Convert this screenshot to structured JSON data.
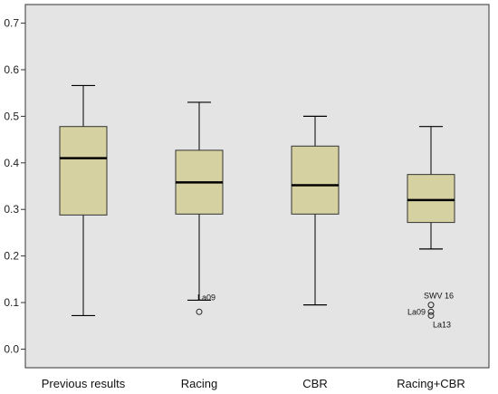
{
  "colors": {
    "plot_background": "#e4e4e4",
    "box_fill": "#d6d1a0",
    "median_line": "#000000",
    "axis": "#333333"
  },
  "chart_data": {
    "type": "boxplot",
    "title": "",
    "xlabel": "",
    "ylabel": "",
    "ylim": [
      -0.04,
      0.74
    ],
    "yticks": [
      0.0,
      0.1,
      0.2,
      0.3,
      0.4,
      0.5,
      0.6,
      0.7
    ],
    "ytick_labels": [
      "0.0",
      "0.1",
      "0.2",
      "0.3",
      "0.4",
      "0.5",
      "0.6",
      "0.7"
    ],
    "grid": false,
    "categories": [
      "Previous results",
      "Racing",
      "CBR",
      "Racing+CBR"
    ],
    "boxes": [
      {
        "category": "Previous results",
        "whisker_low": 0.072,
        "q1": 0.288,
        "median": 0.41,
        "q3": 0.478,
        "whisker_high": 0.566,
        "outliers": []
      },
      {
        "category": "Racing",
        "whisker_low": 0.105,
        "q1": 0.29,
        "median": 0.358,
        "q3": 0.427,
        "whisker_high": 0.53,
        "outliers": [
          {
            "value": 0.08,
            "label": "La09"
          }
        ]
      },
      {
        "category": "CBR",
        "whisker_low": 0.095,
        "q1": 0.29,
        "median": 0.352,
        "q3": 0.436,
        "whisker_high": 0.5,
        "outliers": []
      },
      {
        "category": "Racing+CBR",
        "whisker_low": 0.215,
        "q1": 0.272,
        "median": 0.32,
        "q3": 0.375,
        "whisker_high": 0.478,
        "outliers": [
          {
            "value": 0.095,
            "label": "SWV 16"
          },
          {
            "value": 0.08,
            "label": "La09"
          },
          {
            "value": 0.072,
            "label": "La13"
          }
        ]
      }
    ]
  }
}
